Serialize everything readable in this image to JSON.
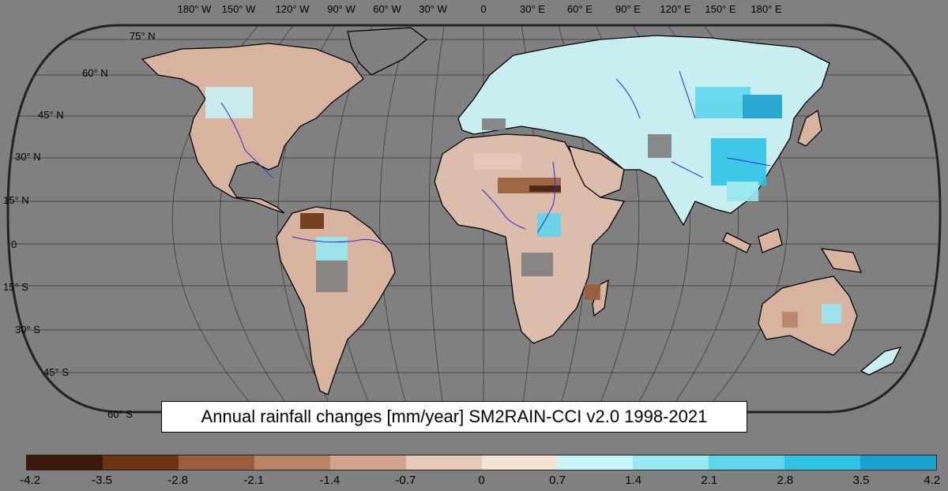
{
  "title": "Annual rainfall changes [mm/year] SM2RAIN-CCI v2.0 1998-2021",
  "longitude_labels": [
    "180° W",
    "150° W",
    "120° W",
    "90° W",
    "60° W",
    "30° W",
    "0",
    "30° E",
    "60° E",
    "90° E",
    "120° E",
    "150° E",
    "180° E"
  ],
  "latitude_labels": [
    "75° N",
    "60° N",
    "45° N",
    "30° N",
    "15° N",
    "0",
    "15° S",
    "30° S",
    "45° S",
    "60° S"
  ],
  "colorbar": {
    "tick_labels": [
      "-4.2",
      "-3.5",
      "-2.8",
      "-2.1",
      "-1.4",
      "-0.7",
      "0",
      "0.7",
      "1.4",
      "2.1",
      "2.8",
      "3.5",
      "4.2"
    ],
    "colors": [
      "#3a1a08",
      "#6b3413",
      "#9a5e3a",
      "#b98468",
      "#d1a58c",
      "#e7c9b8",
      "#f6e2d5",
      "#c8f5f7",
      "#98e8f1",
      "#5fd6ec",
      "#30c3e6",
      "#1aa1cf",
      "#12819f"
    ]
  },
  "colors": {
    "ocean": "#808080",
    "no_data": "#6b6b6b",
    "rivers": "#2b2bd4",
    "coast": "#000000"
  }
}
